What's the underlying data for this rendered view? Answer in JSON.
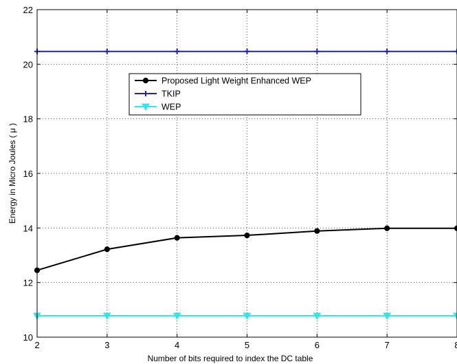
{
  "chart_data": {
    "type": "line",
    "title": "",
    "xlabel": "Number of bits required to index the DC table",
    "ylabel": "Energy in Micro Joules ( μ )",
    "xlim": [
      2,
      8
    ],
    "ylim": [
      10,
      22
    ],
    "xticks": [
      2,
      3,
      4,
      5,
      6,
      7,
      8
    ],
    "yticks": [
      10,
      12,
      14,
      16,
      18,
      20,
      22
    ],
    "xtick_labels": [
      "2",
      "3",
      "4",
      "5",
      "6",
      "7",
      "8"
    ],
    "ytick_labels": [
      "10",
      "12",
      "14",
      "16",
      "18",
      "20",
      "22"
    ],
    "grid": true,
    "legend_position": "upper-center",
    "x": [
      2,
      3,
      4,
      5,
      6,
      7,
      8
    ],
    "series": [
      {
        "name": "Proposed Light Weight Enhanced WEP",
        "values": [
          12.45,
          13.22,
          13.64,
          13.73,
          13.89,
          13.99,
          13.99
        ],
        "color": "#000000",
        "marker": "circle"
      },
      {
        "name": "TKIP",
        "values": [
          20.47,
          20.47,
          20.47,
          20.47,
          20.47,
          20.47,
          20.47
        ],
        "color": "#1f1fd6",
        "marker": "plus"
      },
      {
        "name": "WEP",
        "values": [
          10.78,
          10.78,
          10.78,
          10.78,
          10.78,
          10.78,
          10.78
        ],
        "color": "#33e6e6",
        "marker": "triangle-down"
      }
    ]
  }
}
